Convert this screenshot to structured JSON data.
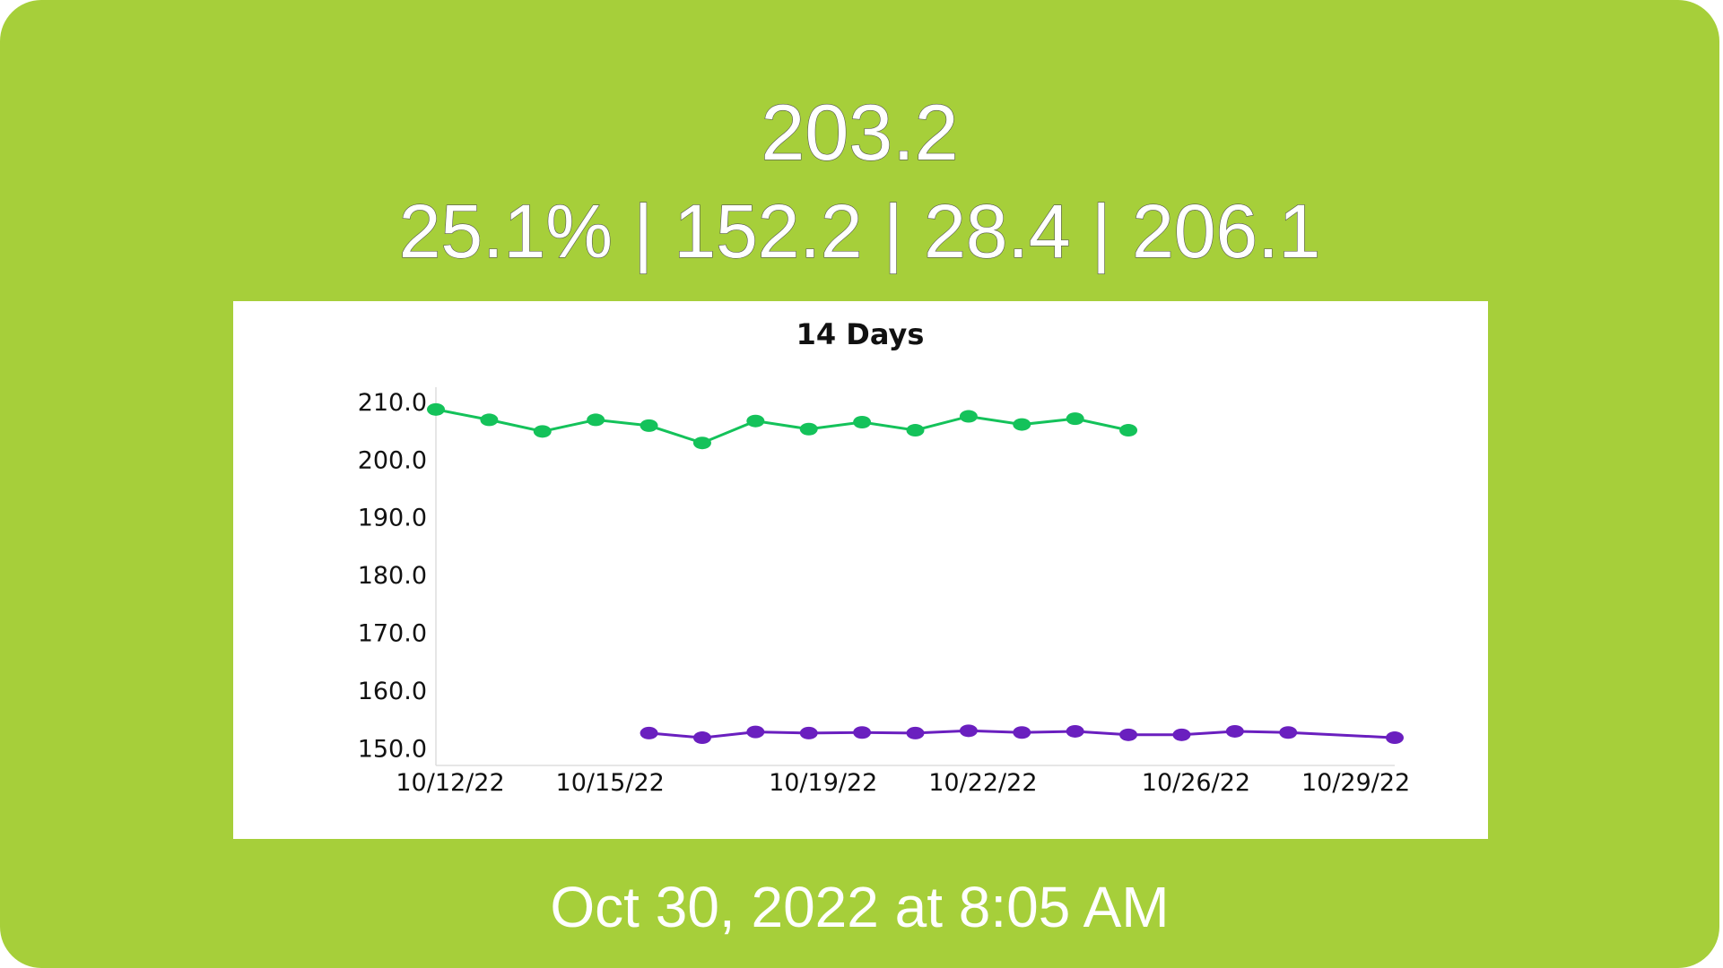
{
  "header": {
    "weight": "203.2",
    "stats": "25.1% | 152.2 | 28.4 | 206.1"
  },
  "footer": {
    "timestamp": "Oct 30, 2022 at 8:05 AM"
  },
  "colors": {
    "background": "#a6cf3a",
    "series_green": "#14c25a",
    "series_purple": "#6a1fbf"
  },
  "chart_data": {
    "type": "line",
    "title": "14 Days",
    "xlabel": "",
    "ylabel": "",
    "ylim": [
      147,
      214
    ],
    "xlim": [
      "2022-10-12",
      "2022-10-30"
    ],
    "y_ticks": [
      "150.0",
      "160.0",
      "170.0",
      "180.0",
      "190.0",
      "200.0",
      "210.0"
    ],
    "x_ticks": [
      "10/12/22",
      "10/15/22",
      "10/19/22",
      "10/22/22",
      "10/26/22",
      "10/29/22"
    ],
    "grid": false,
    "legend": "none",
    "series": [
      {
        "color": "#14c25a",
        "points": [
          {
            "x": "2022-10-12",
            "y": 208.6
          },
          {
            "x": "2022-10-13",
            "y": 206.8
          },
          {
            "x": "2022-10-14",
            "y": 204.8
          },
          {
            "x": "2022-10-15",
            "y": 206.8
          },
          {
            "x": "2022-10-16",
            "y": 205.8
          },
          {
            "x": "2022-10-17",
            "y": 202.8
          },
          {
            "x": "2022-10-18",
            "y": 206.6
          },
          {
            "x": "2022-10-19",
            "y": 205.2
          },
          {
            "x": "2022-10-20",
            "y": 206.4
          },
          {
            "x": "2022-10-21",
            "y": 205.0
          },
          {
            "x": "2022-10-22",
            "y": 207.4
          },
          {
            "x": "2022-10-23",
            "y": 206.0
          },
          {
            "x": "2022-10-24",
            "y": 207.0
          },
          {
            "x": "2022-10-25",
            "y": 205.0
          }
        ]
      },
      {
        "color": "#6a1fbf",
        "points": [
          {
            "x": "2022-10-16",
            "y": 152.6
          },
          {
            "x": "2022-10-17",
            "y": 151.8
          },
          {
            "x": "2022-10-18",
            "y": 152.8
          },
          {
            "x": "2022-10-19",
            "y": 152.6
          },
          {
            "x": "2022-10-20",
            "y": 152.7
          },
          {
            "x": "2022-10-21",
            "y": 152.6
          },
          {
            "x": "2022-10-22",
            "y": 153.0
          },
          {
            "x": "2022-10-23",
            "y": 152.7
          },
          {
            "x": "2022-10-24",
            "y": 152.9
          },
          {
            "x": "2022-10-25",
            "y": 152.3
          },
          {
            "x": "2022-10-26",
            "y": 152.3
          },
          {
            "x": "2022-10-27",
            "y": 152.9
          },
          {
            "x": "2022-10-28",
            "y": 152.7
          },
          {
            "x": "2022-10-30",
            "y": 151.8
          }
        ]
      }
    ]
  }
}
